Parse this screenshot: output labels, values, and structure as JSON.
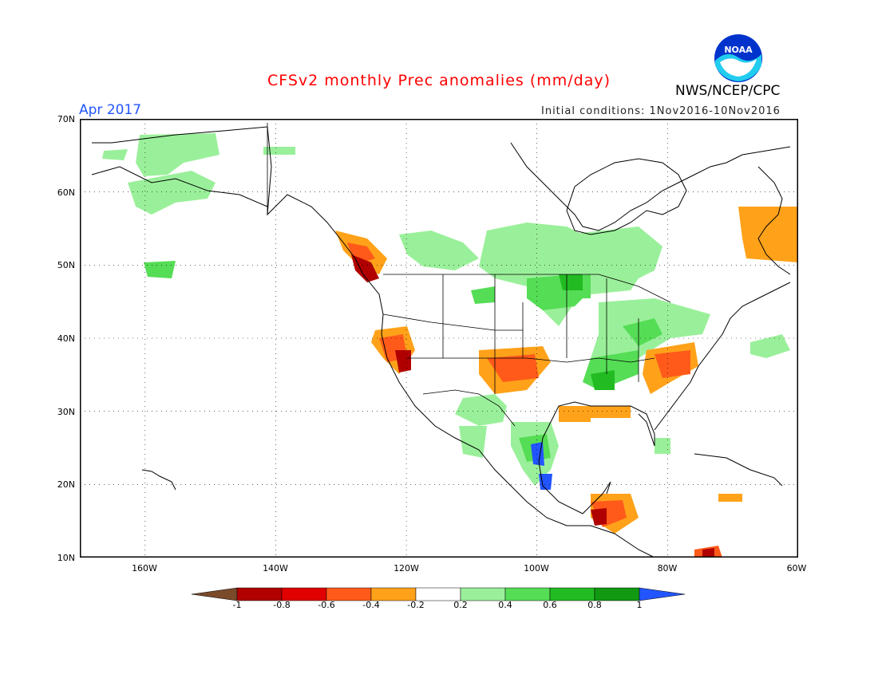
{
  "header": {
    "title": "CFSv2 monthly Prec anomalies (mm/day)",
    "period": "Apr 2017",
    "organization": "NWS/NCEP/CPC",
    "initial_conditions": "Initial conditions: 1Nov2016-10Nov2016",
    "logo_text": "NOAA"
  },
  "axes": {
    "lat_labels": [
      "70N",
      "60N",
      "50N",
      "40N",
      "30N",
      "20N",
      "10N"
    ],
    "lon_labels": [
      "160W",
      "140W",
      "120W",
      "100W",
      "80W",
      "60W"
    ],
    "lat_range": [
      10,
      70
    ],
    "lon_range": [
      -170,
      -60
    ]
  },
  "colorbar": {
    "labels": [
      "-1",
      "-0.8",
      "-0.6",
      "-0.4",
      "-0.2",
      "0.2",
      "0.4",
      "0.6",
      "0.8",
      "1"
    ],
    "colors": [
      "#7a4a2a",
      "#b00000",
      "#e00000",
      "#ff5a1a",
      "#ffa21a",
      "#ffffff",
      "#9af09a",
      "#55dd55",
      "#22bb22",
      "#119911",
      "#2255ff"
    ]
  },
  "chart_data": {
    "type": "heatmap",
    "title": "CFSv2 monthly Prec anomalies (mm/day)",
    "units": "mm/day",
    "regions": [
      {
        "lat": 51,
        "lon": -128,
        "value": -0.8
      },
      {
        "lat": 50,
        "lon": -127,
        "value": -0.7
      },
      {
        "lat": 37,
        "lon": -121,
        "value": -0.6
      },
      {
        "lat": 36,
        "lon": -119,
        "value": -0.7
      },
      {
        "lat": 35,
        "lon": -103,
        "value": -0.5
      },
      {
        "lat": 36,
        "lon": -78,
        "value": -0.5
      },
      {
        "lat": 58,
        "lon": -65,
        "value": -0.3
      },
      {
        "lat": 15,
        "lon": -89,
        "value": -0.7
      },
      {
        "lat": 12,
        "lon": -74,
        "value": -0.6
      },
      {
        "lat": 25,
        "lon": -100,
        "value": 1.0
      },
      {
        "lat": 21,
        "lon": -99,
        "value": 1.0
      },
      {
        "lat": 46,
        "lon": -98,
        "value": 0.6
      },
      {
        "lat": 33,
        "lon": -87,
        "value": 0.7
      },
      {
        "lat": 63,
        "lon": -155,
        "value": 0.3
      }
    ]
  }
}
